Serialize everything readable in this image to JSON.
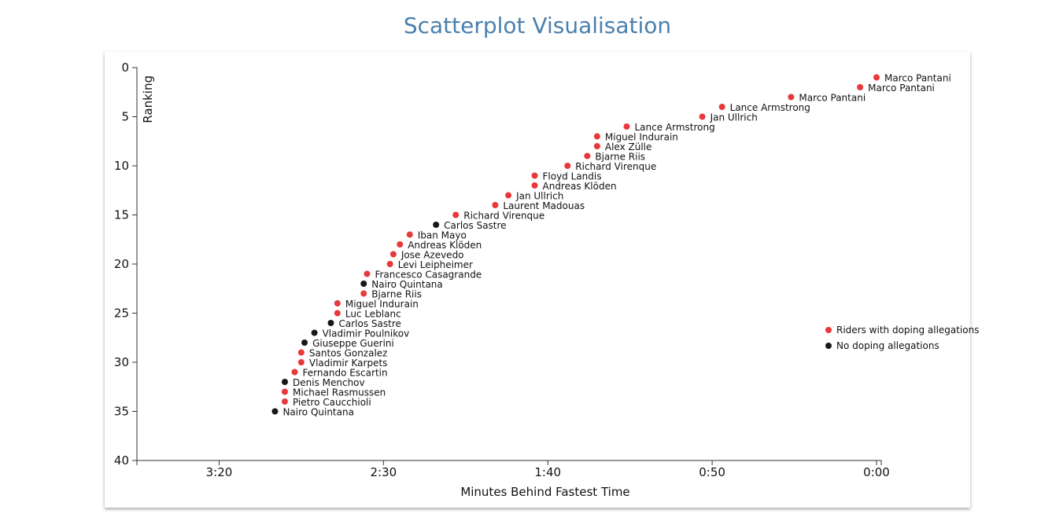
{
  "title": "Scatterplot Visualisation",
  "colors": {
    "doping": "#e8383b",
    "clean": "#16181d",
    "title": "#4a7fad"
  },
  "chart_data": {
    "type": "scatter",
    "xlabel": "Minutes Behind Fastest Time",
    "ylabel": "Ranking",
    "x_units": "seconds behind fastest time",
    "xlim": [
      225,
      0
    ],
    "ylim": [
      0,
      40
    ],
    "x_ticks": [
      {
        "value": 200,
        "label": "3:20"
      },
      {
        "value": 150,
        "label": "2:30"
      },
      {
        "value": 100,
        "label": "1:40"
      },
      {
        "value": 50,
        "label": "0:50"
      },
      {
        "value": 0,
        "label": "0:00"
      }
    ],
    "y_ticks": [
      0,
      5,
      10,
      15,
      20,
      25,
      30,
      35,
      40
    ],
    "legend": {
      "position": "right",
      "items": [
        {
          "label": "Riders with doping allegations",
          "doping": true
        },
        {
          "label": "No doping allegations",
          "doping": false
        }
      ]
    },
    "points": [
      {
        "rank": 1,
        "seconds": 0,
        "name": "Marco Pantani",
        "doping": true
      },
      {
        "rank": 2,
        "seconds": 5,
        "name": "Marco Pantani",
        "doping": true
      },
      {
        "rank": 3,
        "seconds": 26,
        "name": "Marco Pantani",
        "doping": true
      },
      {
        "rank": 4,
        "seconds": 47,
        "name": "Lance Armstrong",
        "doping": true
      },
      {
        "rank": 5,
        "seconds": 53,
        "name": "Jan Ullrich",
        "doping": true
      },
      {
        "rank": 6,
        "seconds": 76,
        "name": "Lance Armstrong",
        "doping": true
      },
      {
        "rank": 7,
        "seconds": 85,
        "name": "Miguel Indurain",
        "doping": true
      },
      {
        "rank": 8,
        "seconds": 85,
        "name": "Alex Zülle",
        "doping": true
      },
      {
        "rank": 9,
        "seconds": 88,
        "name": "Bjarne Riis",
        "doping": true
      },
      {
        "rank": 10,
        "seconds": 94,
        "name": "Richard Virenque",
        "doping": true
      },
      {
        "rank": 11,
        "seconds": 104,
        "name": "Floyd Landis",
        "doping": true
      },
      {
        "rank": 12,
        "seconds": 104,
        "name": "Andreas Klöden",
        "doping": true
      },
      {
        "rank": 13,
        "seconds": 112,
        "name": "Jan Ullrich",
        "doping": true
      },
      {
        "rank": 14,
        "seconds": 116,
        "name": "Laurent Madouas",
        "doping": true
      },
      {
        "rank": 15,
        "seconds": 128,
        "name": "Richard Virenque",
        "doping": true
      },
      {
        "rank": 16,
        "seconds": 134,
        "name": "Carlos Sastre",
        "doping": false
      },
      {
        "rank": 17,
        "seconds": 142,
        "name": "Iban Mayo",
        "doping": true
      },
      {
        "rank": 18,
        "seconds": 145,
        "name": "Andreas Klöden",
        "doping": true
      },
      {
        "rank": 19,
        "seconds": 147,
        "name": "Jose Azevedo",
        "doping": true
      },
      {
        "rank": 20,
        "seconds": 148,
        "name": "Levi Leipheimer",
        "doping": true
      },
      {
        "rank": 21,
        "seconds": 155,
        "name": "Francesco Casagrande",
        "doping": true
      },
      {
        "rank": 22,
        "seconds": 156,
        "name": "Nairo Quintana",
        "doping": false
      },
      {
        "rank": 23,
        "seconds": 156,
        "name": "Bjarne Riis",
        "doping": true
      },
      {
        "rank": 24,
        "seconds": 164,
        "name": "Miguel Indurain",
        "doping": true
      },
      {
        "rank": 25,
        "seconds": 164,
        "name": "Luc Leblanc",
        "doping": true
      },
      {
        "rank": 26,
        "seconds": 166,
        "name": "Carlos Sastre",
        "doping": false
      },
      {
        "rank": 27,
        "seconds": 171,
        "name": "Vladimir Poulnikov",
        "doping": false
      },
      {
        "rank": 28,
        "seconds": 174,
        "name": "Giuseppe Guerini",
        "doping": false
      },
      {
        "rank": 29,
        "seconds": 175,
        "name": "Santos Gonzalez",
        "doping": true
      },
      {
        "rank": 30,
        "seconds": 175,
        "name": "Vladimir Karpets",
        "doping": true
      },
      {
        "rank": 31,
        "seconds": 177,
        "name": "Fernando Escartin",
        "doping": true
      },
      {
        "rank": 32,
        "seconds": 180,
        "name": "Denis Menchov",
        "doping": false
      },
      {
        "rank": 33,
        "seconds": 180,
        "name": "Michael Rasmussen",
        "doping": true
      },
      {
        "rank": 34,
        "seconds": 180,
        "name": "Pietro Caucchioli",
        "doping": true
      },
      {
        "rank": 35,
        "seconds": 183,
        "name": "Nairo Quintana",
        "doping": false
      }
    ]
  }
}
